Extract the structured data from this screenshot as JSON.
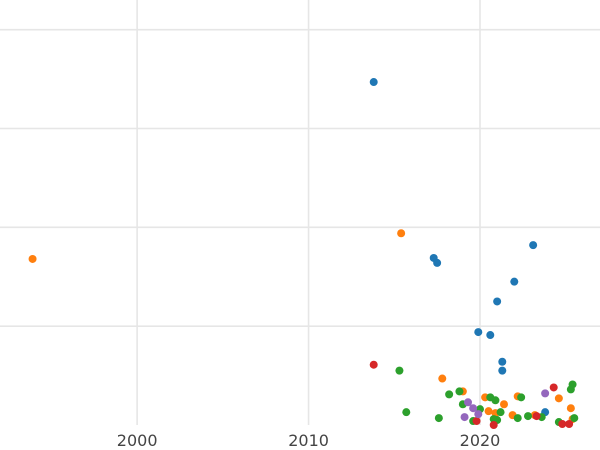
{
  "chart_data": {
    "type": "scatter",
    "title": "",
    "xlabel": "",
    "ylabel": "",
    "xlim": [
      1992,
      2027
    ],
    "ylim": [
      0,
      43
    ],
    "grid": true,
    "x_ticks": [
      {
        "value": 2000,
        "label": "2000"
      },
      {
        "value": 2010,
        "label": "2010"
      },
      {
        "value": 2020,
        "label": "2020"
      }
    ],
    "y_gridlines": [
      10,
      20,
      30,
      40
    ],
    "y_minor_gridlines": [],
    "series": [
      {
        "name": "blue",
        "color": "#1f77b4",
        "points": [
          [
            2013.8,
            34.7
          ],
          [
            2017.3,
            16.9
          ],
          [
            2017.5,
            16.4
          ],
          [
            2019.9,
            9.4
          ],
          [
            2020.6,
            9.1
          ],
          [
            2021.0,
            12.5
          ],
          [
            2022.0,
            14.5
          ],
          [
            2023.1,
            18.2
          ],
          [
            2021.3,
            6.4
          ],
          [
            2021.3,
            5.5
          ],
          [
            2023.8,
            1.3
          ]
        ]
      },
      {
        "name": "orange",
        "color": "#ff7f0e",
        "points": [
          [
            1993.9,
            16.8
          ],
          [
            2015.4,
            19.4
          ],
          [
            2017.8,
            4.7
          ],
          [
            2019.0,
            3.4
          ],
          [
            2020.3,
            2.8
          ],
          [
            2020.9,
            1.2
          ],
          [
            2021.4,
            2.1
          ],
          [
            2022.2,
            2.9
          ],
          [
            2024.6,
            2.7
          ],
          [
            2025.3,
            1.7
          ],
          [
            2020.5,
            1.4
          ],
          [
            2023.2,
            1.0
          ],
          [
            2025.4,
            0.6
          ],
          [
            2021.9,
            1.0
          ]
        ]
      },
      {
        "name": "green",
        "color": "#2ca02c",
        "points": [
          [
            2015.3,
            5.5
          ],
          [
            2015.7,
            1.3
          ],
          [
            2017.6,
            0.7
          ],
          [
            2018.2,
            3.1
          ],
          [
            2018.8,
            3.4
          ],
          [
            2019.0,
            2.1
          ],
          [
            2019.6,
            0.4
          ],
          [
            2020.0,
            1.6
          ],
          [
            2020.6,
            2.8
          ],
          [
            2020.9,
            2.5
          ],
          [
            2021.2,
            1.3
          ],
          [
            2020.8,
            0.6
          ],
          [
            2022.4,
            2.8
          ],
          [
            2022.8,
            0.9
          ],
          [
            2023.6,
            0.8
          ],
          [
            2024.6,
            0.3
          ],
          [
            2025.3,
            3.6
          ],
          [
            2025.4,
            4.1
          ],
          [
            2025.5,
            0.7
          ],
          [
            2022.2,
            0.7
          ],
          [
            2021.0,
            0.5
          ]
        ]
      },
      {
        "name": "red",
        "color": "#d62728",
        "points": [
          [
            2013.8,
            6.1
          ],
          [
            2019.8,
            0.4
          ],
          [
            2020.8,
            0.0
          ],
          [
            2023.3,
            0.9
          ],
          [
            2024.3,
            3.8
          ],
          [
            2024.8,
            0.1
          ],
          [
            2025.2,
            0.1
          ]
        ]
      },
      {
        "name": "purple",
        "color": "#9467bd",
        "points": [
          [
            2019.3,
            2.3
          ],
          [
            2019.6,
            1.7
          ],
          [
            2019.9,
            1.1
          ],
          [
            2019.1,
            0.8
          ],
          [
            2023.8,
            3.2
          ]
        ]
      }
    ]
  }
}
